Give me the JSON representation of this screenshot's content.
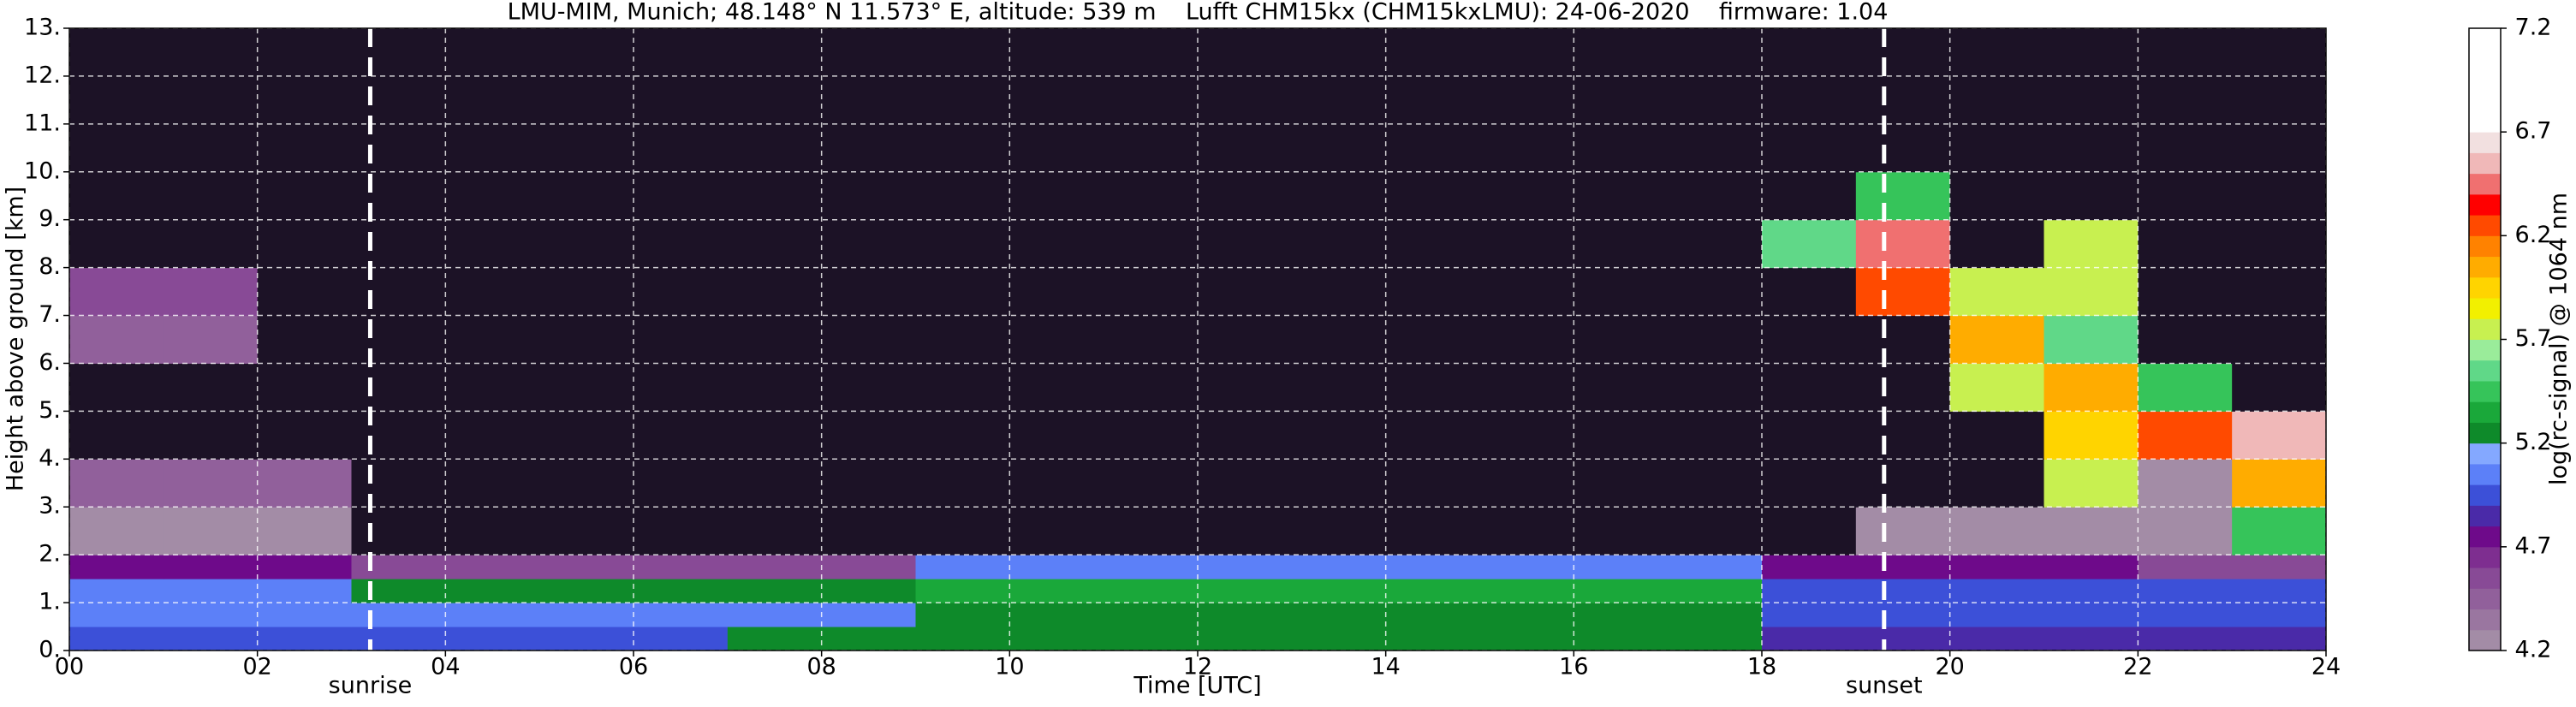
{
  "chart_data": {
    "type": "heatmap",
    "title": "LMU-MIM, Munich; 48.148° N 11.573° E, altitude: 539 m    Lufft CHM15kx (CHM15kxLMU): 24-06-2020    firmware: 1.04",
    "xlabel": "Time [UTC]",
    "ylabel": "Height above ground [km]",
    "colorbar_label": "log(rc-signal) @ 1064 nm",
    "xlim": [
      0,
      24
    ],
    "ylim": [
      0,
      13
    ],
    "xticks": [
      {
        "value": 0,
        "label": "00"
      },
      {
        "value": 2,
        "label": "02"
      },
      {
        "value": 4,
        "label": "04"
      },
      {
        "value": 6,
        "label": "06"
      },
      {
        "value": 8,
        "label": "08"
      },
      10,
      12,
      14,
      16,
      18,
      20,
      22,
      24
    ],
    "yticks": [
      {
        "value": 0,
        "label": "0."
      },
      {
        "value": 1,
        "label": "1."
      },
      {
        "value": 2,
        "label": "2."
      },
      {
        "value": 3,
        "label": "3."
      },
      {
        "value": 4,
        "label": "4."
      },
      {
        "value": 5,
        "label": "5."
      },
      {
        "value": 6,
        "label": "6."
      },
      {
        "value": 7,
        "label": "7."
      },
      {
        "value": 8,
        "label": "8."
      },
      {
        "value": 9,
        "label": "9."
      },
      {
        "value": 10,
        "label": "10."
      },
      {
        "value": 11,
        "label": "11."
      },
      {
        "value": 12,
        "label": "12."
      },
      {
        "value": 13,
        "label": "13."
      }
    ],
    "grid": true,
    "clim": [
      4.2,
      7.2
    ],
    "colorbar_ticks": [
      4.2,
      4.7,
      5.2,
      5.7,
      6.2,
      6.7,
      7.2
    ],
    "colors": [
      "#a38ca6",
      "#9a76a0",
      "#91609b",
      "#884a96",
      "#7e2e90",
      "#6e0a8a",
      "#4a2aa8",
      "#3c50d8",
      "#5c80f8",
      "#84a8ff",
      "#0e8a2a",
      "#1aa83a",
      "#36c45a",
      "#60d888",
      "#9aec9a",
      "#c8f050",
      "#f2f000",
      "#ffd400",
      "#ffac00",
      "#ff8200",
      "#ff4a00",
      "#ff0000",
      "#f07070",
      "#f0b8b8",
      "#f2e0e0",
      "#ffffff",
      "#ffffff",
      "#ffffff",
      "#ffffff",
      "#ffffff"
    ],
    "under_color": "#1c1226",
    "annotations": [
      {
        "x": 3.2,
        "label": "sunrise"
      },
      {
        "x": 19.3,
        "label": "sunset"
      }
    ],
    "x_edges": [
      0,
      1,
      2,
      3,
      4,
      5,
      6,
      7,
      8,
      9,
      10,
      11,
      12,
      13,
      14,
      15,
      16,
      17,
      18,
      19,
      20,
      21,
      22,
      23,
      24
    ],
    "y_edges": [
      0,
      0.5,
      1,
      1.5,
      2,
      3,
      4,
      5,
      6,
      7,
      8,
      9,
      10,
      11,
      12,
      13
    ],
    "z": [
      [
        5.0,
        5.0,
        5.0,
        5.0,
        5.0,
        5.0,
        5.0,
        5.2,
        5.2,
        5.3,
        5.3,
        5.3,
        5.3,
        5.3,
        5.3,
        5.3,
        5.3,
        5.3,
        4.85,
        4.85,
        4.85,
        4.85,
        4.85,
        4.85
      ],
      [
        5.05,
        5.05,
        5.05,
        5.05,
        5.05,
        5.05,
        5.05,
        5.05,
        5.05,
        5.3,
        5.3,
        5.3,
        5.3,
        5.3,
        5.3,
        5.3,
        5.3,
        5.3,
        4.9,
        4.9,
        4.9,
        4.9,
        4.9,
        4.9
      ],
      [
        5.1,
        5.1,
        5.1,
        5.2,
        5.2,
        5.2,
        5.2,
        5.2,
        5.2,
        5.35,
        5.35,
        5.35,
        5.35,
        5.35,
        5.35,
        5.35,
        5.35,
        5.35,
        5.0,
        5.0,
        5.0,
        5.0,
        5.0,
        5.0
      ],
      [
        4.7,
        4.7,
        4.7,
        4.6,
        4.6,
        4.6,
        4.6,
        4.6,
        4.6,
        5.1,
        5.1,
        5.1,
        5.1,
        5.1,
        5.1,
        5.1,
        5.1,
        5.1,
        4.8,
        4.8,
        4.8,
        4.8,
        4.6,
        4.6
      ],
      [
        4.3,
        4.3,
        4.3,
        4.0,
        4.0,
        4.0,
        4.0,
        4.0,
        4.0,
        4.0,
        4.0,
        4.0,
        4.0,
        4.0,
        4.0,
        4.0,
        4.0,
        4.0,
        4.0,
        4.3,
        4.3,
        4.3,
        4.3,
        5.5
      ],
      [
        4.5,
        4.5,
        4.5,
        4.0,
        4.0,
        4.0,
        4.0,
        4.0,
        4.0,
        4.0,
        4.0,
        4.0,
        4.0,
        4.0,
        4.0,
        4.0,
        4.0,
        4.0,
        4.0,
        4.0,
        4.0,
        5.8,
        4.3,
        6.0
      ],
      [
        4.0,
        4.0,
        4.0,
        4.0,
        4.0,
        4.0,
        4.0,
        4.0,
        4.0,
        4.0,
        4.0,
        4.0,
        4.0,
        4.0,
        4.0,
        4.0,
        4.0,
        4.0,
        4.0,
        4.0,
        4.0,
        5.9,
        6.2,
        6.5
      ],
      [
        4.0,
        4.0,
        4.0,
        4.0,
        4.0,
        4.0,
        4.0,
        4.0,
        4.0,
        4.0,
        4.0,
        4.0,
        4.0,
        4.0,
        4.0,
        4.0,
        4.0,
        4.0,
        4.0,
        4.0,
        5.8,
        6.0,
        5.5,
        4.0
      ],
      [
        4.5,
        4.5,
        4.0,
        4.0,
        4.0,
        4.0,
        4.0,
        4.0,
        4.0,
        4.0,
        4.0,
        4.0,
        4.0,
        4.0,
        4.0,
        4.0,
        4.0,
        4.0,
        4.0,
        4.0,
        6.0,
        5.6,
        4.0,
        4.0
      ],
      [
        4.6,
        4.6,
        4.0,
        4.0,
        4.0,
        4.0,
        4.0,
        4.0,
        4.0,
        4.0,
        4.0,
        4.0,
        4.0,
        4.0,
        4.0,
        4.0,
        4.0,
        4.0,
        4.0,
        6.3,
        5.8,
        5.7,
        4.0,
        4.0
      ],
      [
        4.0,
        4.0,
        4.0,
        4.0,
        4.0,
        4.0,
        4.0,
        4.0,
        4.0,
        4.0,
        4.0,
        4.0,
        4.0,
        4.0,
        4.0,
        4.0,
        4.0,
        4.0,
        5.6,
        6.4,
        4.0,
        5.8,
        4.0,
        4.0
      ],
      [
        4.0,
        4.0,
        4.0,
        4.0,
        4.0,
        4.0,
        4.0,
        4.0,
        4.0,
        4.0,
        4.0,
        4.0,
        4.0,
        4.0,
        4.0,
        4.0,
        4.0,
        4.0,
        4.0,
        5.5,
        4.0,
        4.0,
        4.0,
        4.0
      ],
      [
        4.0,
        4.0,
        4.0,
        4.0,
        4.0,
        4.0,
        4.0,
        4.0,
        4.0,
        4.0,
        4.0,
        4.0,
        4.0,
        4.0,
        4.0,
        4.0,
        4.0,
        4.0,
        4.0,
        4.0,
        4.0,
        4.0,
        4.0,
        4.0
      ],
      [
        4.0,
        4.0,
        4.0,
        4.0,
        4.0,
        4.0,
        4.0,
        4.0,
        4.0,
        4.0,
        4.0,
        4.0,
        4.0,
        4.0,
        4.0,
        4.0,
        4.0,
        4.0,
        4.0,
        4.0,
        4.0,
        4.0,
        4.0,
        4.0
      ],
      [
        4.0,
        4.0,
        4.0,
        4.0,
        4.0,
        4.0,
        4.0,
        4.0,
        4.0,
        4.0,
        4.0,
        4.0,
        4.0,
        4.0,
        4.0,
        4.0,
        4.0,
        4.0,
        4.0,
        4.0,
        4.0,
        4.0,
        4.0,
        4.0
      ]
    ]
  }
}
